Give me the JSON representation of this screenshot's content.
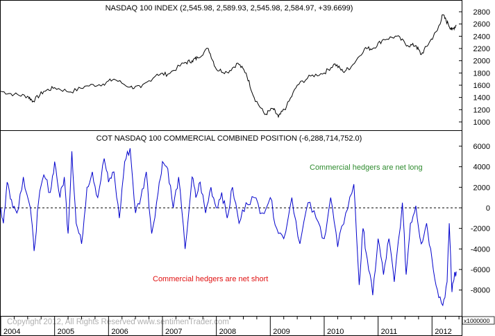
{
  "chart_data": [
    {
      "type": "line",
      "title": "NASDAQ 100 INDEX (2,545.98, 2,589.93, 2,545.98, 2,584.97, +39.6699)",
      "ylim": [
        900,
        2900
      ],
      "yticks": [
        1000,
        1200,
        1400,
        1600,
        1800,
        2000,
        2200,
        2400,
        2600,
        2800
      ],
      "ytick_labels": [
        "1000",
        "1200",
        "1400",
        "1600",
        "1800",
        "2000",
        "2200",
        "2400",
        "2600",
        "2800"
      ],
      "series": [
        {
          "color": "#000000",
          "x": [
            2004.0,
            2004.25,
            2004.5,
            2004.6,
            2004.8,
            2005.0,
            2005.3,
            2005.6,
            2005.9,
            2006.1,
            2006.4,
            2006.6,
            2006.9,
            2007.1,
            2007.4,
            2007.55,
            2007.65,
            2007.85,
            2008.0,
            2008.2,
            2008.4,
            2008.55,
            2008.7,
            2008.9,
            2009.05,
            2009.15,
            2009.3,
            2009.5,
            2009.75,
            2010.0,
            2010.2,
            2010.35,
            2010.5,
            2010.75,
            2010.9,
            2011.1,
            2011.35,
            2011.55,
            2011.7,
            2011.8,
            2011.95,
            2012.1,
            2012.2,
            2012.3,
            2012.37,
            2012.45
          ],
          "y": [
            1500,
            1450,
            1420,
            1340,
            1500,
            1560,
            1490,
            1590,
            1620,
            1700,
            1570,
            1560,
            1780,
            1780,
            1960,
            2000,
            2050,
            2200,
            1860,
            1810,
            1960,
            1800,
            1400,
            1120,
            1220,
            1080,
            1250,
            1600,
            1750,
            1800,
            1950,
            1820,
            1900,
            2200,
            2200,
            2350,
            2400,
            2250,
            2250,
            2100,
            2300,
            2500,
            2750,
            2600,
            2500,
            2585
          ]
        }
      ]
    },
    {
      "type": "line",
      "title": "COT NASDAQ 100 COMMERCIAL COMBINED POSITION (-6,288,714,752.0)",
      "ylim": [
        -10000,
        7000
      ],
      "yticks": [
        -8000,
        -6000,
        -4000,
        -2000,
        0,
        2000,
        4000,
        6000
      ],
      "ytick_labels": [
        "-8000",
        "-6000",
        "-4000",
        "-2000",
        "0",
        "2000",
        "4000",
        "6000"
      ],
      "y_multiplier_label": "x1000000",
      "reference_line": 0,
      "series": [
        {
          "color": "#0000cc",
          "x": [
            2004.0,
            2004.05,
            2004.12,
            2004.2,
            2004.3,
            2004.42,
            2004.55,
            2004.62,
            2004.7,
            2004.8,
            2004.92,
            2005.0,
            2005.1,
            2005.18,
            2005.25,
            2005.32,
            2005.4,
            2005.5,
            2005.6,
            2005.7,
            2005.8,
            2005.92,
            2006.0,
            2006.1,
            2006.2,
            2006.3,
            2006.4,
            2006.5,
            2006.6,
            2006.7,
            2006.8,
            2006.92,
            2007.0,
            2007.1,
            2007.2,
            2007.3,
            2007.42,
            2007.55,
            2007.62,
            2007.7,
            2007.8,
            2007.9,
            2008.0,
            2008.1,
            2008.2,
            2008.3,
            2008.42,
            2008.55,
            2008.7,
            2008.85,
            2009.0,
            2009.12,
            2009.25,
            2009.4,
            2009.55,
            2009.7,
            2009.85,
            2010.0,
            2010.12,
            2010.25,
            2010.4,
            2010.55,
            2010.65,
            2010.72,
            2010.8,
            2010.9,
            2011.0,
            2011.1,
            2011.2,
            2011.3,
            2011.45,
            2011.52,
            2011.6,
            2011.7,
            2011.8,
            2011.9,
            2012.0,
            2012.1,
            2012.2,
            2012.28,
            2012.32,
            2012.37,
            2012.42,
            2012.45
          ],
          "y": [
            0,
            -1500,
            2500,
            800,
            -500,
            3000,
            0,
            -4200,
            500,
            3200,
            1500,
            4500,
            1000,
            3000,
            -2500,
            5500,
            -1500,
            -3500,
            2000,
            3500,
            1000,
            4800,
            2500,
            3500,
            -1000,
            4500,
            5800,
            -500,
            1000,
            3500,
            -2500,
            1500,
            4500,
            3800,
            0,
            3000,
            -4000,
            3000,
            1000,
            2500,
            -500,
            2000,
            0,
            1500,
            -1000,
            2000,
            -1500,
            500,
            1000,
            -500,
            1000,
            -2000,
            -3000,
            1000,
            -3500,
            500,
            -1000,
            -3000,
            1000,
            -3800,
            -500,
            2300,
            -7500,
            -2000,
            -5000,
            -8500,
            -3000,
            -6500,
            -3000,
            -7200,
            500,
            -6500,
            -1500,
            200,
            -3500,
            -1500,
            -5000,
            -8000,
            -9500,
            -7200,
            -1500,
            -8200,
            -6288,
            -6200
          ]
        }
      ],
      "annotations": [
        {
          "text": "Commercial hedgers are net long",
          "color": "#2e8b2e"
        },
        {
          "text": "Commercial hedgers are net short",
          "color": "#e01010"
        }
      ]
    }
  ],
  "x_axis": {
    "labels": [
      "2004",
      "2005",
      "2006",
      "2007",
      "2008",
      "2009",
      "2010",
      "2011",
      "2012"
    ],
    "range": [
      2004.0,
      2012.55
    ]
  },
  "footer": {
    "copyright": "Copyright 2012, All Rights Reserved  www.sentimenTrader.com"
  },
  "colors": {
    "price_line": "#000000",
    "cot_line": "#0000cc",
    "frame": "#000000"
  }
}
